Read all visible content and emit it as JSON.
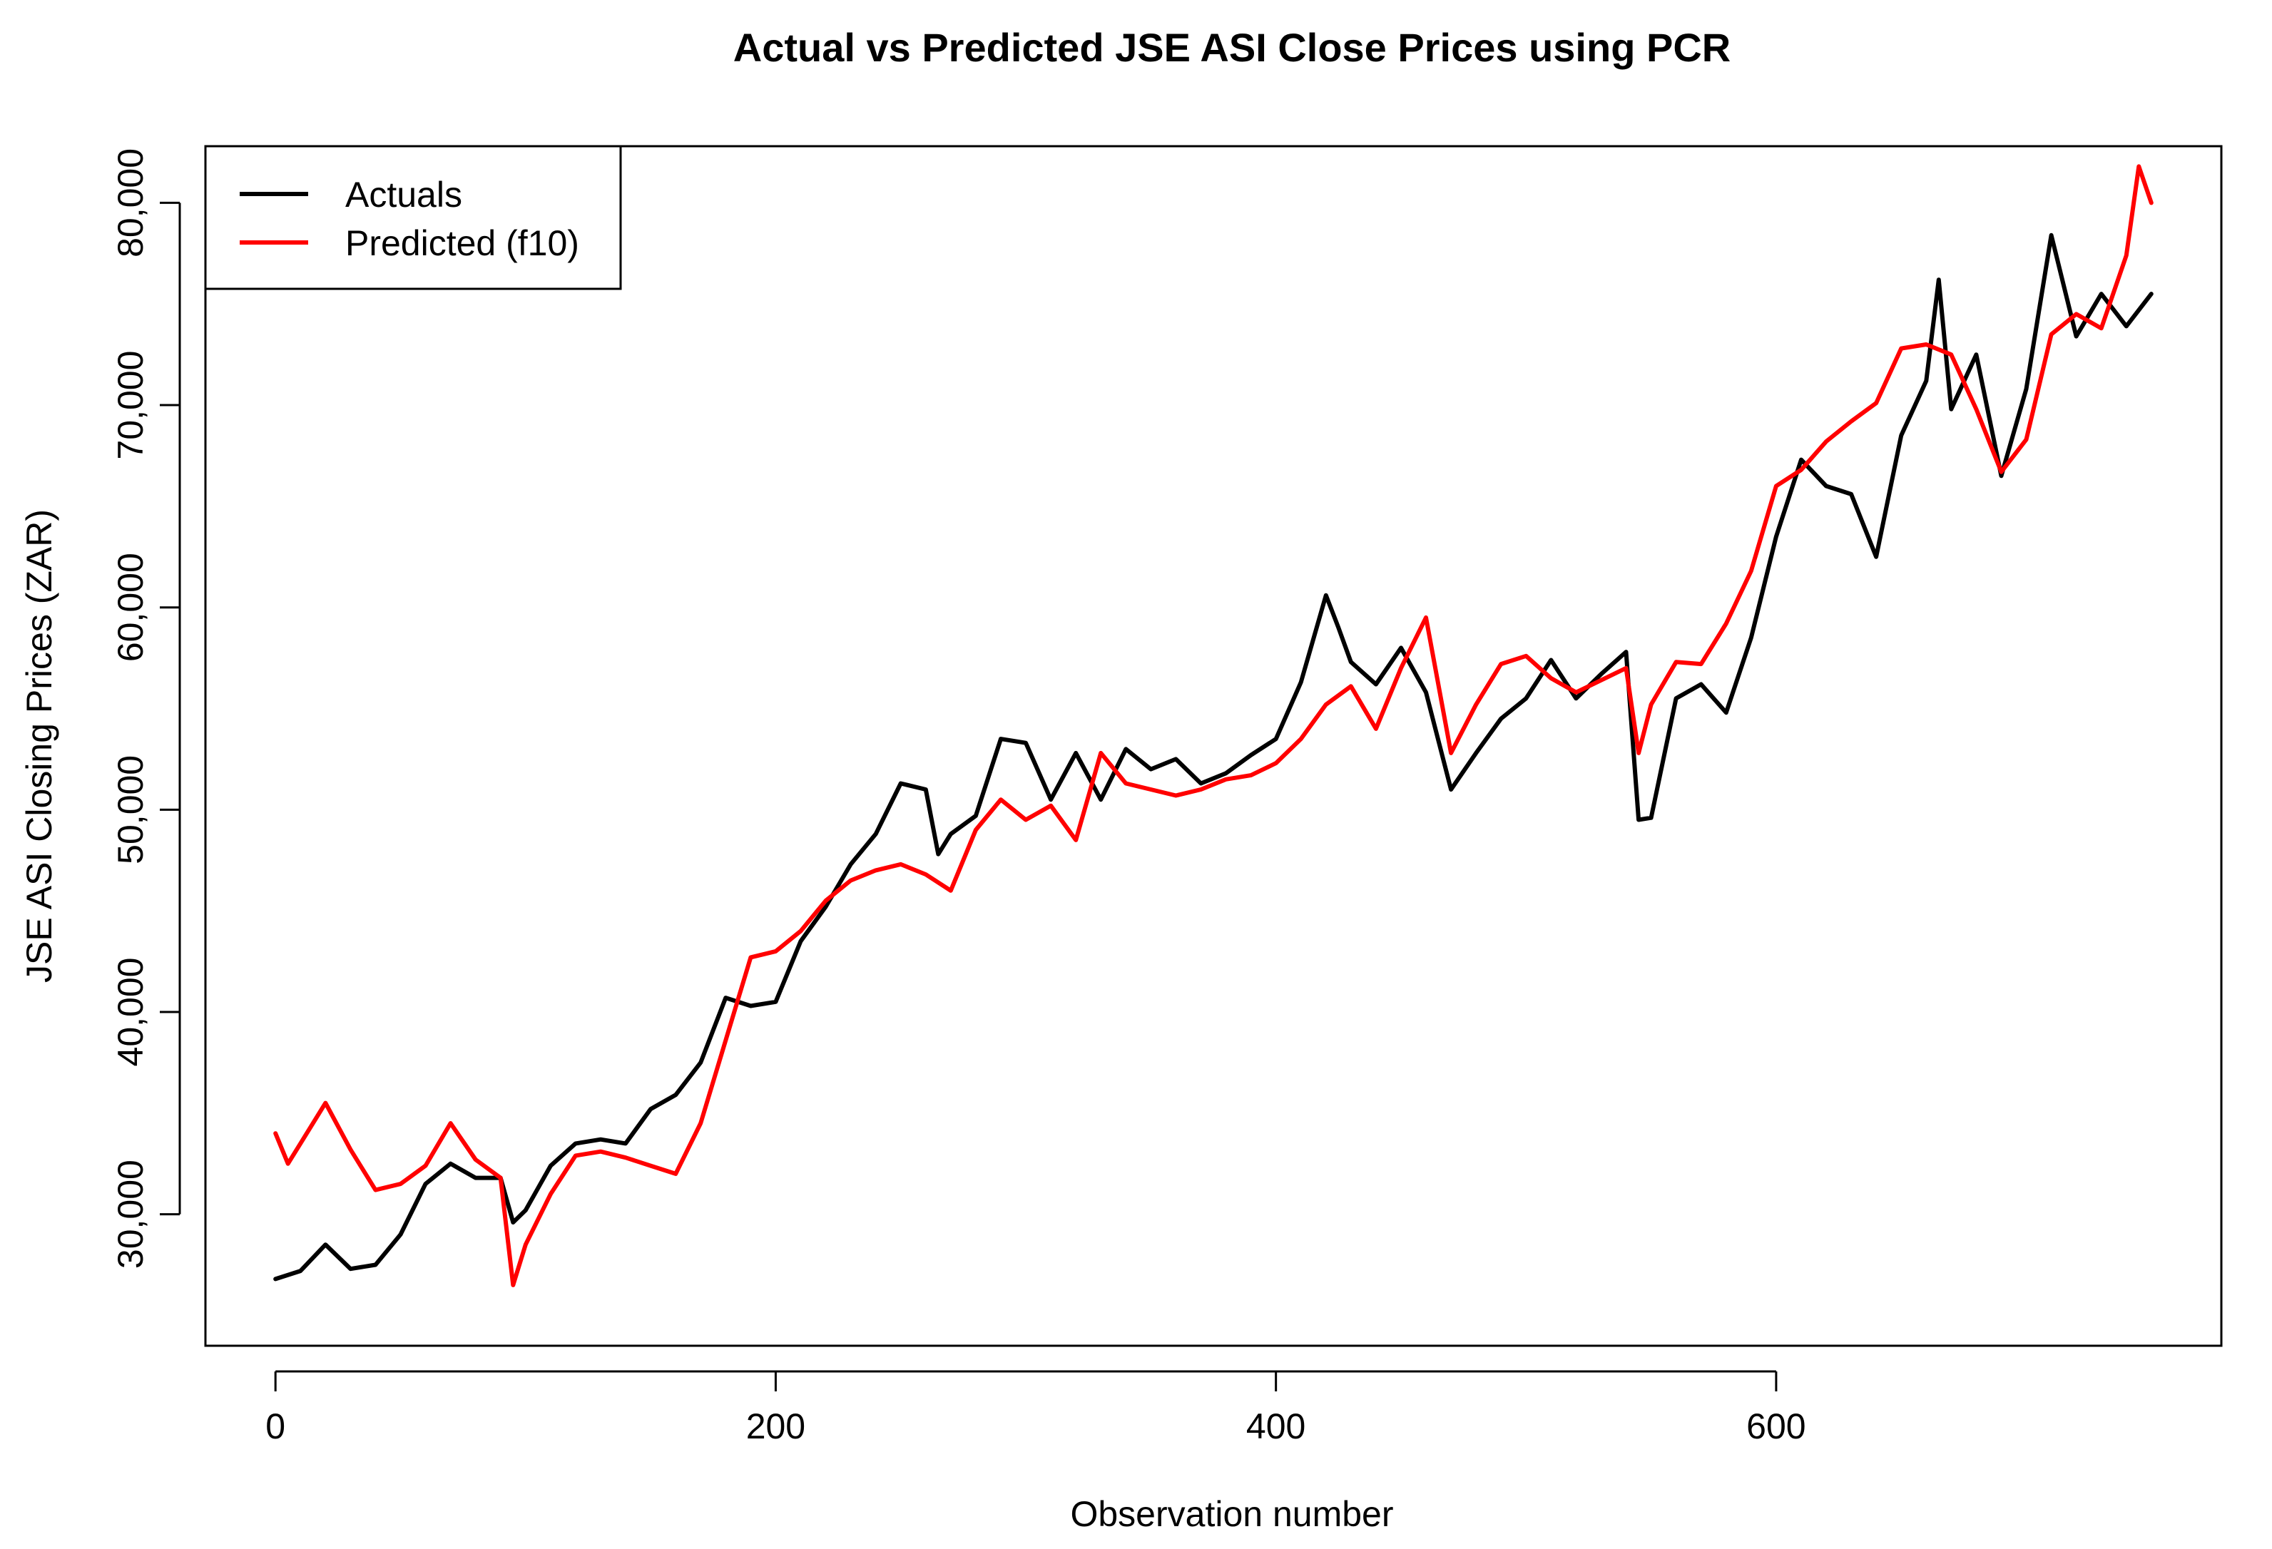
{
  "chart_data": {
    "type": "line",
    "title": "Actual vs Predicted JSE ASI Close Prices using PCR",
    "xlabel": "Observation number",
    "ylabel": "JSE ASI Closing Prices (ZAR)",
    "xlim": [
      -28,
      778
    ],
    "ylim": [
      23500,
      82800
    ],
    "x_ticks": [
      0,
      200,
      400,
      600
    ],
    "x_tick_labels": [
      "0",
      "200",
      "400",
      "600"
    ],
    "y_ticks": [
      30000,
      40000,
      50000,
      60000,
      70000,
      80000
    ],
    "y_tick_labels": [
      "30,000",
      "40,000",
      "50,000",
      "60,000",
      "70,000",
      "80,000"
    ],
    "legend": {
      "position": "top-left",
      "entries": [
        {
          "label": "Actuals",
          "color": "#000000"
        },
        {
          "label": "Predicted (f10)",
          "color": "#ff0000"
        }
      ]
    },
    "series": [
      {
        "name": "Actuals",
        "color": "#000000",
        "points": [
          [
            0,
            26800
          ],
          [
            10,
            27200
          ],
          [
            20,
            28500
          ],
          [
            30,
            27300
          ],
          [
            40,
            27500
          ],
          [
            50,
            29000
          ],
          [
            60,
            31500
          ],
          [
            70,
            32500
          ],
          [
            80,
            31800
          ],
          [
            90,
            31800
          ],
          [
            95,
            29600
          ],
          [
            100,
            30200
          ],
          [
            110,
            32400
          ],
          [
            120,
            33500
          ],
          [
            130,
            33700
          ],
          [
            140,
            33500
          ],
          [
            150,
            35200
          ],
          [
            160,
            35900
          ],
          [
            170,
            37500
          ],
          [
            180,
            40700
          ],
          [
            190,
            40300
          ],
          [
            200,
            40500
          ],
          [
            210,
            43500
          ],
          [
            220,
            45200
          ],
          [
            230,
            47300
          ],
          [
            240,
            48800
          ],
          [
            250,
            51300
          ],
          [
            260,
            51000
          ],
          [
            265,
            47800
          ],
          [
            270,
            48800
          ],
          [
            280,
            49700
          ],
          [
            290,
            53500
          ],
          [
            300,
            53300
          ],
          [
            310,
            50500
          ],
          [
            320,
            52800
          ],
          [
            330,
            50500
          ],
          [
            340,
            53000
          ],
          [
            350,
            52000
          ],
          [
            360,
            52500
          ],
          [
            370,
            51300
          ],
          [
            380,
            51800
          ],
          [
            390,
            52700
          ],
          [
            400,
            53500
          ],
          [
            410,
            56300
          ],
          [
            420,
            60600
          ],
          [
            425,
            59000
          ],
          [
            430,
            57300
          ],
          [
            440,
            56200
          ],
          [
            450,
            58000
          ],
          [
            460,
            55800
          ],
          [
            470,
            51000
          ],
          [
            480,
            52800
          ],
          [
            490,
            54500
          ],
          [
            500,
            55500
          ],
          [
            510,
            57400
          ],
          [
            520,
            55500
          ],
          [
            530,
            56700
          ],
          [
            540,
            57800
          ],
          [
            545,
            49500
          ],
          [
            550,
            49600
          ],
          [
            560,
            55500
          ],
          [
            570,
            56200
          ],
          [
            580,
            54800
          ],
          [
            590,
            58500
          ],
          [
            600,
            63500
          ],
          [
            610,
            67300
          ],
          [
            620,
            66000
          ],
          [
            630,
            65600
          ],
          [
            640,
            62500
          ],
          [
            650,
            68500
          ],
          [
            660,
            71200
          ],
          [
            665,
            76200
          ],
          [
            670,
            69800
          ],
          [
            680,
            72500
          ],
          [
            690,
            66500
          ],
          [
            700,
            70800
          ],
          [
            710,
            78400
          ],
          [
            720,
            73400
          ],
          [
            730,
            75500
          ],
          [
            740,
            73900
          ],
          [
            750,
            75500
          ]
        ]
      },
      {
        "name": "Predicted (f10)",
        "color": "#ff0000",
        "points": [
          [
            0,
            34000
          ],
          [
            5,
            32500
          ],
          [
            10,
            33500
          ],
          [
            20,
            35500
          ],
          [
            30,
            33200
          ],
          [
            40,
            31200
          ],
          [
            50,
            31500
          ],
          [
            60,
            32400
          ],
          [
            70,
            34500
          ],
          [
            80,
            32700
          ],
          [
            90,
            31800
          ],
          [
            95,
            26500
          ],
          [
            100,
            28500
          ],
          [
            110,
            31000
          ],
          [
            120,
            32900
          ],
          [
            130,
            33100
          ],
          [
            140,
            32800
          ],
          [
            150,
            32400
          ],
          [
            160,
            32000
          ],
          [
            170,
            34500
          ],
          [
            180,
            38600
          ],
          [
            190,
            42700
          ],
          [
            200,
            43000
          ],
          [
            210,
            44000
          ],
          [
            220,
            45500
          ],
          [
            230,
            46500
          ],
          [
            240,
            47000
          ],
          [
            250,
            47300
          ],
          [
            260,
            46800
          ],
          [
            270,
            46000
          ],
          [
            280,
            49000
          ],
          [
            290,
            50500
          ],
          [
            300,
            49500
          ],
          [
            310,
            50200
          ],
          [
            320,
            48500
          ],
          [
            330,
            52800
          ],
          [
            340,
            51300
          ],
          [
            350,
            51000
          ],
          [
            360,
            50700
          ],
          [
            370,
            51000
          ],
          [
            380,
            51500
          ],
          [
            390,
            51700
          ],
          [
            400,
            52300
          ],
          [
            410,
            53500
          ],
          [
            420,
            55200
          ],
          [
            430,
            56100
          ],
          [
            440,
            54000
          ],
          [
            450,
            57000
          ],
          [
            460,
            59500
          ],
          [
            470,
            52800
          ],
          [
            480,
            55200
          ],
          [
            490,
            57200
          ],
          [
            500,
            57600
          ],
          [
            510,
            56500
          ],
          [
            520,
            55800
          ],
          [
            530,
            56400
          ],
          [
            540,
            57000
          ],
          [
            545,
            52800
          ],
          [
            550,
            55200
          ],
          [
            560,
            57300
          ],
          [
            570,
            57200
          ],
          [
            580,
            59200
          ],
          [
            590,
            61800
          ],
          [
            600,
            66000
          ],
          [
            610,
            66800
          ],
          [
            620,
            68200
          ],
          [
            630,
            69200
          ],
          [
            640,
            70100
          ],
          [
            650,
            72800
          ],
          [
            660,
            73000
          ],
          [
            670,
            72500
          ],
          [
            680,
            69800
          ],
          [
            690,
            66700
          ],
          [
            700,
            68300
          ],
          [
            710,
            73500
          ],
          [
            720,
            74500
          ],
          [
            730,
            73800
          ],
          [
            740,
            77400
          ],
          [
            745,
            81800
          ],
          [
            750,
            80000
          ]
        ]
      }
    ]
  }
}
